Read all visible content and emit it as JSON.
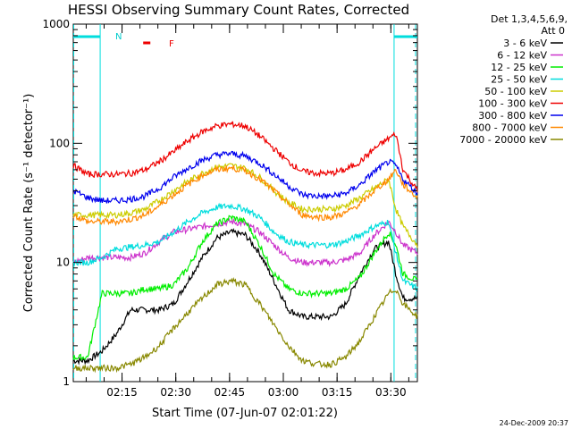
{
  "chart_data": {
    "type": "line",
    "title": "HESSI Observing Summary Count Rates, Corrected",
    "xlabel": "Start Time (07-Jun-07 02:01:22)",
    "ylabel": "Corrected Count Rate (s⁻¹ detector⁻¹)",
    "yscale": "log",
    "ylim": [
      1,
      1000
    ],
    "xlim_minutes": [
      0,
      96
    ],
    "y_ticks": [
      {
        "v": 1,
        "label": "1"
      },
      {
        "v": 10,
        "label": "10"
      },
      {
        "v": 100,
        "label": "100"
      },
      {
        "v": 1000,
        "label": "1000"
      }
    ],
    "x_ticks": [
      {
        "t": 13.6,
        "label": "02:15"
      },
      {
        "t": 28.6,
        "label": "02:30"
      },
      {
        "t": 43.6,
        "label": "02:45"
      },
      {
        "t": 58.6,
        "label": "03:00"
      },
      {
        "t": 73.6,
        "label": "03:15"
      },
      {
        "t": 88.6,
        "label": "03:30"
      }
    ],
    "legend_title": [
      "Det 1,3,4,5,6,9,",
      "Att 0"
    ],
    "legend_placement": "right, outside plot",
    "grid": false,
    "x": [
      0,
      4,
      8,
      12,
      16,
      20,
      24,
      28,
      32,
      36,
      40,
      44,
      48,
      52,
      56,
      60,
      64,
      68,
      72,
      76,
      80,
      84,
      88,
      90,
      92,
      96
    ],
    "series": [
      {
        "name": "3 - 6 keV",
        "color": "#000000",
        "values": [
          1.5,
          1.5,
          1.8,
          2.5,
          4,
          4,
          4,
          4.5,
          7,
          11,
          16,
          18,
          17,
          12,
          7,
          4,
          3.5,
          3.5,
          3.5,
          4.5,
          8,
          13,
          15,
          8,
          5,
          5
        ]
      },
      {
        "name": "6 - 12 keV",
        "color": "#cc33cc",
        "values": [
          10,
          11,
          11,
          11,
          11,
          12,
          15,
          18,
          19,
          20,
          21,
          22,
          21,
          18,
          14,
          11,
          10,
          10,
          10,
          10.5,
          12,
          17,
          22,
          18,
          14,
          12
        ]
      },
      {
        "name": "12 - 25 keV",
        "color": "#00ee00",
        "values": [
          1.6,
          1.6,
          5.5,
          5.5,
          5.5,
          6,
          6,
          6.5,
          9,
          15,
          21,
          24,
          22,
          14,
          8,
          6,
          5.5,
          5.5,
          5.5,
          6,
          7.5,
          12,
          18,
          14,
          8,
          7
        ]
      },
      {
        "name": "25 - 50 keV",
        "color": "#00dddd",
        "values": [
          10,
          10,
          11,
          13,
          13.5,
          14,
          15,
          18,
          22,
          26,
          29,
          30,
          28,
          24,
          18,
          15,
          14,
          14,
          14,
          15,
          17,
          20,
          22,
          12,
          7,
          6
        ]
      },
      {
        "name": "50 - 100 keV",
        "color": "#cccc00",
        "values": [
          25,
          25,
          25,
          25,
          26,
          28,
          33,
          40,
          48,
          56,
          63,
          65,
          62,
          52,
          40,
          32,
          28,
          28,
          28,
          30,
          35,
          42,
          50,
          28,
          20,
          14
        ]
      },
      {
        "name": "100 - 300 keV",
        "color": "#ee0000",
        "values": [
          65,
          55,
          55,
          55,
          56,
          60,
          70,
          85,
          105,
          125,
          140,
          145,
          140,
          115,
          90,
          70,
          58,
          56,
          56,
          60,
          70,
          90,
          110,
          120,
          60,
          40
        ]
      },
      {
        "name": "300 - 800 keV",
        "color": "#0000ee",
        "values": [
          40,
          35,
          33,
          33,
          34,
          36,
          42,
          52,
          62,
          72,
          80,
          82,
          78,
          68,
          55,
          44,
          37,
          36,
          36,
          38,
          45,
          58,
          70,
          65,
          50,
          38
        ]
      },
      {
        "name": "800 - 7000 keV",
        "color": "#ff8800",
        "values": [
          25,
          22,
          22,
          22,
          23,
          25,
          30,
          37,
          45,
          54,
          60,
          62,
          59,
          50,
          40,
          31,
          25,
          24,
          24,
          26,
          31,
          40,
          50,
          60,
          45,
          35
        ]
      },
      {
        "name": "7000 - 20000 keV",
        "color": "#888800",
        "values": [
          1.3,
          1.3,
          1.3,
          1.3,
          1.4,
          1.6,
          2,
          2.8,
          3.8,
          5,
          6.5,
          7,
          6.5,
          4.5,
          3,
          2,
          1.5,
          1.4,
          1.4,
          1.6,
          2.2,
          3.5,
          5.5,
          6,
          4.5,
          3.5
        ]
      }
    ],
    "annotations": [
      {
        "text": "N",
        "color": "#00cccc"
      },
      {
        "text": "F",
        "color": "#ee0000"
      }
    ],
    "night_intervals_minutes": [
      [
        0,
        7.5
      ],
      [
        89.5,
        96
      ]
    ],
    "flare_marker_minutes": [
      19.5,
      21.5
    ]
  },
  "timestamp": "24-Dec-2009 20:37"
}
